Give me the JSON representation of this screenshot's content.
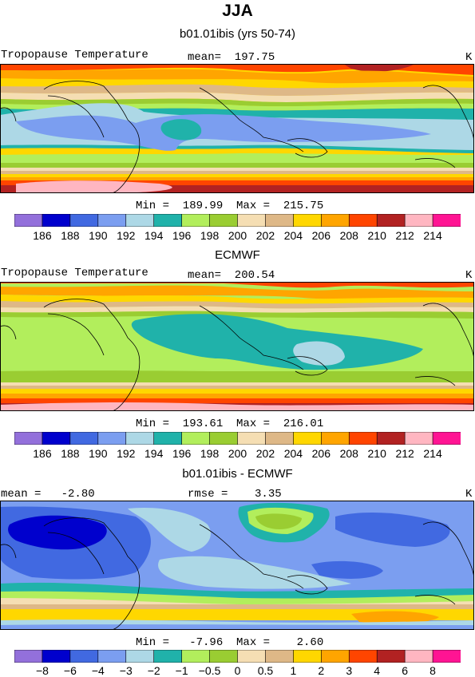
{
  "title": "JJA",
  "palette": [
    "#9370db",
    "#0000cd",
    "#4169e1",
    "#7b9ef0",
    "#add8e6",
    "#20b2aa",
    "#b2ee5c",
    "#9acd32",
    "#f5deb3",
    "#deb887",
    "#ffd700",
    "#ffa500",
    "#ff4500",
    "#b22222",
    "#ffb6c1",
    "#ff1493"
  ],
  "panels": [
    {
      "subtitle": "b01.01ibis (yrs 50-74)",
      "left_label": "Tropopause Temperature",
      "center_label": "mean=  197.75",
      "right_label": "K",
      "minmax": "Min =  189.99  Max =  215.75",
      "chart_data": {
        "type": "contour-map",
        "variable": "Tropopause Temperature",
        "units": "K",
        "season": "JJA",
        "mean": 197.75,
        "min": 189.99,
        "max": 215.75,
        "levels": [
          186,
          188,
          190,
          192,
          194,
          196,
          198,
          200,
          202,
          204,
          206,
          208,
          210,
          212,
          214
        ],
        "colorbar_labels": [
          "186",
          "188",
          "190",
          "192",
          "194",
          "196",
          "198",
          "200",
          "202",
          "204",
          "206",
          "208",
          "210",
          "212",
          "214"
        ]
      }
    },
    {
      "subtitle": "ECMWF",
      "left_label": "Tropopause Temperature",
      "center_label": "mean=  200.54",
      "right_label": "K",
      "minmax": "Min =  193.61  Max =  216.01",
      "chart_data": {
        "type": "contour-map",
        "variable": "Tropopause Temperature",
        "units": "K",
        "season": "JJA",
        "mean": 200.54,
        "min": 193.61,
        "max": 216.01,
        "levels": [
          186,
          188,
          190,
          192,
          194,
          196,
          198,
          200,
          202,
          204,
          206,
          208,
          210,
          212,
          214
        ],
        "colorbar_labels": [
          "186",
          "188",
          "190",
          "192",
          "194",
          "196",
          "198",
          "200",
          "202",
          "204",
          "206",
          "208",
          "210",
          "212",
          "214"
        ]
      }
    },
    {
      "subtitle": "b01.01ibis - ECMWF",
      "left_label": "mean =   -2.80",
      "center_label": "rmse =    3.35",
      "right_label": "K",
      "minmax": "Min =   -7.96  Max =    2.60",
      "chart_data": {
        "type": "contour-map",
        "variable": "Tropopause Temperature difference",
        "units": "K",
        "season": "JJA",
        "mean": -2.8,
        "rmse": 3.35,
        "min": -7.96,
        "max": 2.6,
        "levels": [
          -8,
          -6,
          -4,
          -3,
          -2,
          -1,
          -0.5,
          0,
          0.5,
          1,
          2,
          3,
          4,
          6,
          8
        ],
        "colorbar_labels": [
          "-8",
          "-6",
          "-4",
          "-3",
          "-2",
          "-1",
          "-0.5",
          "0",
          "0.5",
          "1",
          "2",
          "3",
          "4",
          "6",
          "8"
        ]
      }
    }
  ]
}
